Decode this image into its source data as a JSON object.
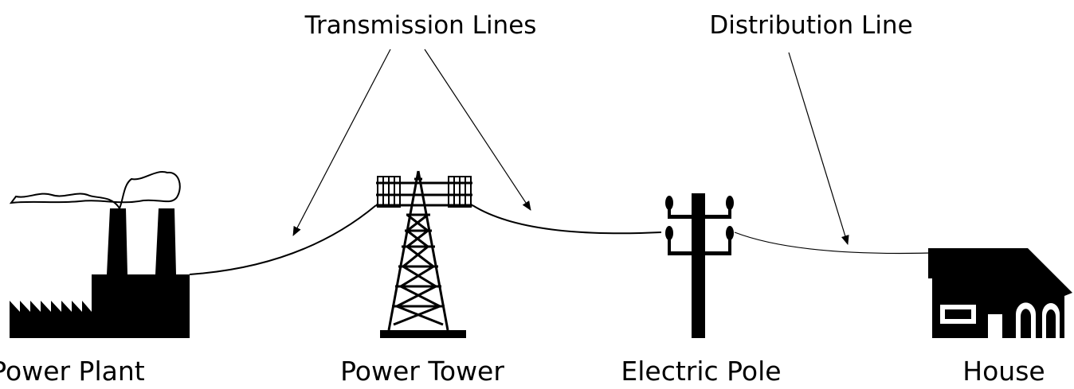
{
  "annotations": {
    "transmission": "Transmission Lines",
    "distribution": "Distribution Line"
  },
  "nodes": [
    {
      "label": "Power Plant"
    },
    {
      "label": "Power Tower"
    },
    {
      "label": "Electric Pole"
    },
    {
      "label": "House"
    }
  ]
}
